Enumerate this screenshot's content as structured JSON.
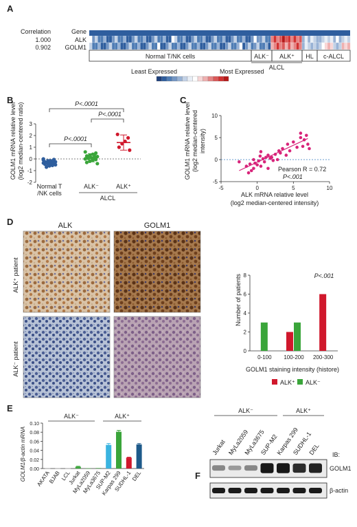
{
  "panels": {
    "A": {
      "label": "A",
      "rows": {
        "header_left": "Correlation",
        "header_right": "Gene",
        "r1_corr": "1.000",
        "r1_gene": "ALK",
        "r2_corr": "0.902",
        "r2_gene": "GOLM1"
      },
      "groups": {
        "normal": "Normal T/NK cells",
        "alk_neg": "ALK⁻",
        "alk_pos": "ALK⁺",
        "hl": "HL",
        "calcl": "c-ALCL",
        "alcl": "ALCL"
      },
      "legend": {
        "least": "Least Expressed",
        "most": "Most Expressed",
        "colors": [
          "#1e3f7a",
          "#2f5e9e",
          "#4f7db5",
          "#7396c4",
          "#98b2d5",
          "#c3d2e6",
          "#e8eef6",
          "#ffffff",
          "#f7d6d6",
          "#efb0b0",
          "#e58484",
          "#db5858",
          "#d13232",
          "#b51919"
        ]
      }
    },
    "B": {
      "label": "B",
      "ylabel_1": "GOLM1 mRNA relative level",
      "ylabel_2": "(log2 median-centered ratio)",
      "cat_normal_1": "Normal T",
      "cat_normal_2": "/NK cells",
      "cat_neg": "ALK⁻",
      "cat_pos": "ALK⁺",
      "group": "ALCL",
      "p1": "P<.0001",
      "p2": "P<.0001",
      "p3": "P<.0001",
      "yticks": [
        "-2",
        "-1",
        "0",
        "1",
        "2",
        "3"
      ]
    },
    "C": {
      "label": "C",
      "ylabel_1": "GOLM1 mRNA relative level",
      "ylabel_2": "(log2 median-centered",
      "ylabel_3": "intensity)",
      "xlabel_1": "ALK mRNA relative level",
      "xlabel_2": "(log2 median-centered intensity)",
      "pearson": "Pearson R = 0.72",
      "p": "P<.001",
      "xticks": [
        "-5",
        "0",
        "5",
        "10"
      ],
      "yticks": [
        "-5",
        "0",
        "5",
        "10"
      ]
    },
    "D": {
      "label": "D",
      "col1": "ALK",
      "col2": "GOLM1",
      "row1": "ALK⁺ patient",
      "row2": "ALK⁻ patient",
      "ylabel": "Number of patients",
      "xlabel": "GOLM1 staining intensity (histore)",
      "p": "P<.001",
      "legend_pos": "ALK⁺",
      "legend_neg": "ALK⁻",
      "color_pos": "#d0182c",
      "color_neg": "#3aa53a"
    },
    "E": {
      "label": "E",
      "ylabel": "GOLM1/β-actin mRNA",
      "group_neg": "ALK⁻",
      "group_pos": "ALK⁺"
    },
    "F": {
      "label": "F",
      "group_neg": "ALK⁻",
      "group_pos": "ALK⁺",
      "lanes": [
        "Jurkat",
        "MyLa2059",
        "MyLa3675",
        "SUP-M2",
        "Karpas 299",
        "SUDHL-1",
        "DEL"
      ],
      "ib": "IB:",
      "band1": "GOLM1",
      "band2": "β-actin"
    }
  },
  "chart_data": [
    {
      "type": "scatter",
      "panel": "B",
      "categories": [
        "Normal T/NK cells",
        "ALK⁻",
        "ALK⁺"
      ],
      "series": [
        {
          "name": "Normal T/NK cells",
          "mean": -0.3,
          "sd": 0.25,
          "color": "#2f5e9e",
          "values": [
            -0.1,
            -0.15,
            -0.2,
            -0.2,
            -0.25,
            -0.25,
            -0.3,
            -0.3,
            -0.3,
            -0.35,
            -0.35,
            -0.4,
            -0.4,
            -0.45,
            -0.5,
            -0.55,
            -0.6,
            -0.7,
            0.0,
            -0.05
          ]
        },
        {
          "name": "ALK⁻",
          "mean": 0.1,
          "sd": 0.35,
          "color": "#3aa53a",
          "values": [
            0.6,
            0.5,
            0.4,
            0.3,
            0.25,
            0.2,
            0.15,
            0.1,
            0.05,
            0.0,
            -0.05,
            -0.1,
            -0.2,
            -0.3,
            -0.4,
            0.35
          ]
        },
        {
          "name": "ALK⁺",
          "mean": 1.4,
          "sd": 0.65,
          "color": "#d0182c",
          "values": [
            2.1,
            1.8,
            1.5,
            1.3,
            1.0,
            0.75
          ]
        }
      ],
      "ylim": [
        -2,
        3
      ]
    },
    {
      "type": "scatter",
      "panel": "C",
      "x": [
        -2.5,
        -1.5,
        -1.2,
        -1,
        -0.8,
        -0.5,
        -0.3,
        0,
        0.2,
        0.4,
        0.5,
        0.8,
        1,
        1.2,
        1.5,
        1.8,
        2,
        2.2,
        2.5,
        3,
        3.2,
        3.5,
        4,
        4.2,
        4.5,
        5,
        5.5,
        6,
        6.3,
        6.5,
        6.8,
        7,
        7.2,
        0.5,
        1.5,
        2.8,
        -0.5,
        6
      ],
      "y": [
        -0.5,
        -1.5,
        -3,
        -1,
        -2.5,
        0,
        -0.8,
        -1.2,
        -0.3,
        0.8,
        -1.5,
        0.2,
        -0.5,
        0.5,
        1,
        0.3,
        0.5,
        -0.2,
        1.2,
        2,
        1.5,
        2.5,
        1,
        3.5,
        2,
        4,
        2.8,
        5,
        3,
        4.5,
        5.5,
        3.5,
        2.5,
        1.8,
        -2,
        0,
        -2,
        6
      ],
      "fit_line": [
        [
          -2.5,
          -2.5
        ],
        [
          7,
          4.8
        ]
      ],
      "xlim": [
        -5,
        10
      ],
      "ylim": [
        -5,
        10
      ],
      "xlabel": "ALK mRNA relative level (log2 median-centered intensity)",
      "ylabel": "GOLM1 mRNA relative level (log2 median-centered intensity)"
    },
    {
      "type": "bar",
      "panel": "D",
      "categories": [
        "0-100",
        "100-200",
        "200-300"
      ],
      "series": [
        {
          "name": "ALK⁺",
          "values": [
            0,
            2,
            6
          ]
        },
        {
          "name": "ALK⁻",
          "values": [
            3,
            3,
            0
          ]
        }
      ],
      "ylim": [
        0,
        8
      ],
      "yticks": [
        "0",
        "2",
        "4",
        "6",
        "8"
      ],
      "xlabel": "GOLM1 staining intensity (histore)",
      "ylabel": "Number of patients"
    },
    {
      "type": "bar",
      "panel": "E",
      "categories": [
        "AKATA",
        "BJAB",
        "LCL",
        "Jurkat",
        "MyLa2059",
        "MyLa3675",
        "SUP-M2",
        "Karpas 299",
        "SUDHL-1",
        "DEL"
      ],
      "values": [
        0.0005,
        0.0005,
        0.0005,
        0.004,
        0.0005,
        0.001,
        0.052,
        0.081,
        0.024,
        0.053
      ],
      "errors": [
        0,
        0,
        0,
        0.001,
        0,
        0,
        0.003,
        0.003,
        0.001,
        0.002
      ],
      "colors": [
        "#b9b9b9",
        "#b9b9b9",
        "#b9b9b9",
        "#3aa53a",
        "#3aa53a",
        "#3aa53a",
        "#3ab4e0",
        "#3aa53a",
        "#d0182c",
        "#1e5a8a"
      ],
      "ylim": [
        0,
        0.1
      ],
      "yticks": [
        "0.00",
        "0.02",
        "0.04",
        "0.06",
        "0.08",
        "0.10"
      ]
    }
  ]
}
